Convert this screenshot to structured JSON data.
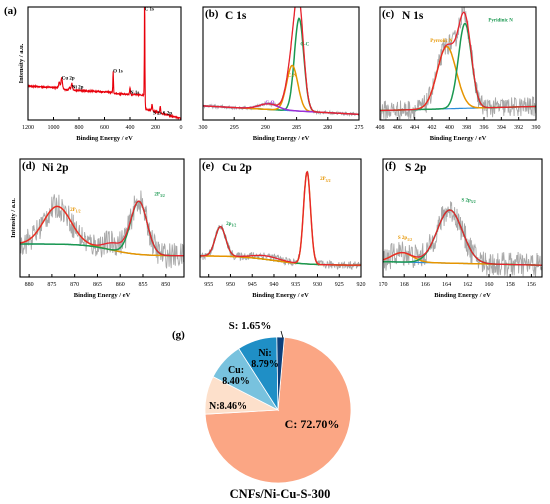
{
  "figure": {
    "panels": [
      {
        "id": "a",
        "letter": "(a)",
        "title": "",
        "xlabel": "Binding Energy / eV",
        "ylabel": "Intensity / a.u.",
        "xticks": [
          1200,
          1000,
          800,
          600,
          400,
          200,
          0
        ],
        "xrange": [
          1200,
          0
        ],
        "color": "#e8000b",
        "annotations": [
          {
            "text": "C 1s",
            "x": 285,
            "y": 0.97,
            "color": "#000000"
          },
          {
            "text": "O 1s",
            "x": 532,
            "y": 0.42,
            "color": "#000000"
          },
          {
            "text": "N 1s",
            "x": 400,
            "y": 0.23,
            "color": "#000000"
          },
          {
            "text": "Cu 2p",
            "x": 935,
            "y": 0.36,
            "color": "#000000"
          },
          {
            "text": "Ni 2p",
            "x": 856,
            "y": 0.28,
            "color": "#000000"
          },
          {
            "text": "S 2s S 2p",
            "x": 220,
            "y": 0.05,
            "color": "#000000"
          }
        ]
      },
      {
        "id": "b",
        "letter": "(b)",
        "title": "C 1s",
        "xlabel": "Binding Energy / eV",
        "ylabel": "",
        "xticks": [
          300,
          295,
          290,
          285,
          280,
          275
        ],
        "xrange": [
          300,
          275
        ],
        "annotations": [
          {
            "text": "C-C",
            "x": 284.4,
            "y": 0.66,
            "color": "#1a9850"
          },
          {
            "text": "C-N",
            "x": 286.4,
            "y": 0.38,
            "color": "#e69500"
          },
          {
            "text": "C-O",
            "x": 290.0,
            "y": 0.14,
            "color": "#9b30d6"
          }
        ]
      },
      {
        "id": "c",
        "letter": "(c)",
        "title": "N 1s",
        "xlabel": "Binding Energy / eV",
        "ylabel": "",
        "xticks": [
          408,
          406,
          404,
          402,
          400,
          398,
          396,
          394,
          392,
          390
        ],
        "xrange": [
          408,
          390
        ],
        "annotations": [
          {
            "text": "Pyrrolic N",
            "x": 402.2,
            "y": 0.69,
            "color": "#e69500"
          },
          {
            "text": "Pyridinic N",
            "x": 395.5,
            "y": 0.87,
            "color": "#1a9850"
          }
        ]
      },
      {
        "id": "d",
        "letter": "(d)",
        "title": "Ni 2p",
        "xlabel": "Binding Energy / eV",
        "ylabel": "Intensity / a.u.",
        "xticks": [
          880,
          875,
          870,
          865,
          860,
          855,
          850
        ],
        "xrange": [
          882,
          846
        ],
        "annotations": [
          {
            "text": "2P",
            "sub": "1/2",
            "x": 871.0,
            "y": 0.56,
            "color": "#e69500"
          },
          {
            "text": "2P",
            "sub": "3/2",
            "x": 852.5,
            "y": 0.69,
            "color": "#1a9850"
          }
        ]
      },
      {
        "id": "e",
        "letter": "(e)",
        "title": "Cu 2p",
        "xlabel": "Binding Energy / eV",
        "ylabel": "",
        "xticks": [
          955,
          950,
          945,
          940,
          935,
          930,
          925,
          920
        ],
        "xrange": [
          957,
          920
        ],
        "annotations": [
          {
            "text": "2p",
            "sub": "1/2",
            "x": 951.0,
            "y": 0.44,
            "color": "#1a9850"
          },
          {
            "text": "2P",
            "sub": "3/2",
            "x": 929.4,
            "y": 0.82,
            "color": "#e69500"
          }
        ]
      },
      {
        "id": "f",
        "letter": "(f)",
        "title": "S 2p",
        "xlabel": "Binding Energy / eV",
        "ylabel": "",
        "xticks": [
          170,
          168,
          166,
          164,
          162,
          160,
          158,
          156
        ],
        "xrange": [
          170,
          155
        ],
        "annotations": [
          {
            "text": "S 2p",
            "sub": "1/2",
            "x": 168.6,
            "y": 0.32,
            "color": "#e69500"
          },
          {
            "text": "S 2p",
            "sub": "3/2",
            "x": 162.6,
            "y": 0.64,
            "color": "#1a9850"
          }
        ]
      }
    ],
    "pie": {
      "letter": "(g)",
      "caption": "CNFs/Ni-Cu-S-300",
      "slices": [
        {
          "label": "C: 72.70%",
          "value": 72.7,
          "color": "#fba684"
        },
        {
          "label": "N:8.46%",
          "value": 8.46,
          "color": "#fde0cb"
        },
        {
          "label": "Cu:\n8.40%",
          "value": 8.4,
          "color": "#78c2de"
        },
        {
          "label": "Ni:\n8.79%",
          "value": 8.79,
          "color": "#1f8fc6"
        },
        {
          "label": "S: 1.65%",
          "value": 1.65,
          "color": "#0c3f7a"
        }
      ]
    }
  },
  "chart_data": [
    {
      "type": "line",
      "title": "",
      "panel": "(a)",
      "xlabel": "Binding Energy / eV",
      "ylabel": "Intensity / a.u.",
      "xlim": [
        1200,
        0
      ],
      "series": [
        {
          "name": "",
          "peaks_eV": [
            935,
            856,
            532,
            400,
            285,
            227,
            163
          ]
        }
      ]
    },
    {
      "type": "line",
      "title": "C 1s",
      "panel": "(b)",
      "xlabel": "Binding Energy / eV",
      "xlim": [
        300,
        275
      ],
      "series": [
        {
          "name": "C-C",
          "center": 284.6,
          "height": 0.82,
          "width": 0.75
        },
        {
          "name": "C-N",
          "center": 285.7,
          "height": 0.4,
          "width": 0.9
        },
        {
          "name": "C-O",
          "center": 289.5,
          "height": 0.05,
          "width": 1.5
        }
      ]
    },
    {
      "type": "line",
      "title": "N 1s",
      "panel": "(c)",
      "xlabel": "Binding Energy / eV",
      "xlim": [
        408,
        390
      ],
      "series": [
        {
          "name": "Pyrrolic N",
          "center": 400.3,
          "height": 0.55,
          "width": 1.1
        },
        {
          "name": "Pyridinic N",
          "center": 398.2,
          "height": 0.75,
          "width": 0.75
        }
      ]
    },
    {
      "type": "line",
      "title": "Ni 2p",
      "panel": "(d)",
      "xlabel": "Binding Energy / eV",
      "xlim": [
        882,
        846
      ],
      "series": [
        {
          "name": "2P1/2",
          "center": 873.8,
          "height": 0.32,
          "width": 3.0
        },
        {
          "name": "2P3/2",
          "center": 855.9,
          "height": 0.45,
          "width": 1.8
        }
      ]
    },
    {
      "type": "line",
      "title": "Cu 2p",
      "panel": "(e)",
      "xlabel": "Binding Energy / eV",
      "xlim": [
        957,
        920
      ],
      "series": [
        {
          "name": "2p1/2",
          "center": 952.3,
          "height": 0.25,
          "width": 1.2
        },
        {
          "name": "2P3/2",
          "center": 932.4,
          "height": 0.78,
          "width": 0.8
        }
      ]
    },
    {
      "type": "line",
      "title": "S 2p",
      "panel": "(f)",
      "xlabel": "Binding Energy / eV",
      "xlim": [
        170,
        155
      ],
      "series": [
        {
          "name": "S 2p1/2",
          "center": 168.2,
          "height": 0.08,
          "width": 1.0
        },
        {
          "name": "S 2p3/2",
          "center": 163.7,
          "height": 0.45,
          "width": 1.2
        }
      ]
    },
    {
      "type": "pie",
      "title": "CNFs/Ni-Cu-S-300",
      "panel": "(g)",
      "categories": [
        "C",
        "N",
        "Cu",
        "Ni",
        "S"
      ],
      "values": [
        72.7,
        8.46,
        8.4,
        8.79,
        1.65
      ]
    }
  ]
}
